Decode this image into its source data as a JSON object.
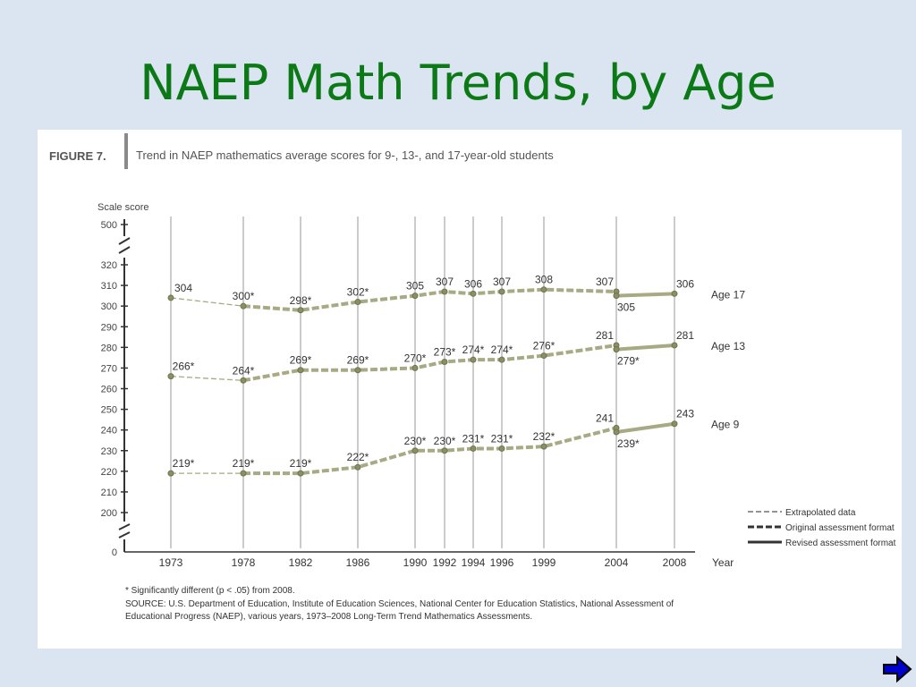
{
  "slide": {
    "title": "NAEP Math Trends, by Age"
  },
  "figure": {
    "label": "FIGURE 7.",
    "caption": "Trend in NAEP mathematics average scores for 9-, 13-, and 17-year-old students",
    "note": "* Significantly different (p < .05) from 2008.",
    "source_line1": "SOURCE: U.S. Department of Education, Institute of Education Sciences, National Center for Education Statistics, National Assessment of",
    "source_line2": "Educational Progress (NAEP), various years, 1973–2008 Long-Term Trend Mathematics Assessments."
  },
  "legend": {
    "items": [
      {
        "label": "Extrapolated data",
        "style": "thin-dashed"
      },
      {
        "label": "Original assessment format",
        "style": "thick-dashed"
      },
      {
        "label": "Revised assessment format",
        "style": "solid"
      }
    ]
  },
  "colors": {
    "title": "#0b7a16",
    "series": "#a7aa82",
    "marker": "#8a9062",
    "background": "#dbe5f1",
    "arrow": "#0000cc"
  },
  "chart_data": {
    "type": "line",
    "ylabel": "Scale score",
    "xlabel": "Year",
    "ylim": [
      200,
      320
    ],
    "yticks": [
      200,
      210,
      220,
      230,
      240,
      250,
      260,
      270,
      280,
      290,
      300,
      310,
      320
    ],
    "ybreak_ticks": [
      "0",
      "500"
    ],
    "xticks": [
      1973,
      1978,
      1982,
      1986,
      1990,
      1992,
      1994,
      1996,
      1999,
      2004,
      2008
    ],
    "grid": "vertical",
    "legend_position": "bottom-right",
    "series": [
      {
        "name": "Age 17",
        "original": [
          [
            1973,
            304
          ],
          [
            1978,
            300
          ],
          [
            1982,
            298
          ],
          [
            1986,
            302
          ],
          [
            1990,
            305
          ],
          [
            1992,
            307
          ],
          [
            1994,
            306
          ],
          [
            1996,
            307
          ],
          [
            1999,
            308
          ],
          [
            2004,
            307
          ]
        ],
        "revised": [
          [
            2004,
            305
          ],
          [
            2008,
            306
          ]
        ],
        "labels": [
          {
            "x": 1973,
            "y": 304,
            "text": "304"
          },
          {
            "x": 1978,
            "y": 300,
            "text": "300*"
          },
          {
            "x": 1982,
            "y": 298,
            "text": "298*"
          },
          {
            "x": 1986,
            "y": 302,
            "text": "302*"
          },
          {
            "x": 1990,
            "y": 305,
            "text": "305"
          },
          {
            "x": 1992,
            "y": 307,
            "text": "307"
          },
          {
            "x": 1994,
            "y": 306,
            "text": "306"
          },
          {
            "x": 1996,
            "y": 307,
            "text": "307"
          },
          {
            "x": 1999,
            "y": 308,
            "text": "308"
          },
          {
            "x": 2004,
            "y": 307,
            "text": "307"
          },
          {
            "x": 2004,
            "y": 305,
            "text": "305",
            "below": true
          },
          {
            "x": 2008,
            "y": 306,
            "text": "306"
          }
        ]
      },
      {
        "name": "Age 13",
        "original": [
          [
            1973,
            266
          ],
          [
            1978,
            264
          ],
          [
            1982,
            269
          ],
          [
            1986,
            269
          ],
          [
            1990,
            270
          ],
          [
            1992,
            273
          ],
          [
            1994,
            274
          ],
          [
            1996,
            274
          ],
          [
            1999,
            276
          ],
          [
            2004,
            281
          ]
        ],
        "revised": [
          [
            2004,
            279
          ],
          [
            2008,
            281
          ]
        ],
        "labels": [
          {
            "x": 1973,
            "y": 266,
            "text": "266*"
          },
          {
            "x": 1978,
            "y": 264,
            "text": "264*"
          },
          {
            "x": 1982,
            "y": 269,
            "text": "269*"
          },
          {
            "x": 1986,
            "y": 269,
            "text": "269*"
          },
          {
            "x": 1990,
            "y": 270,
            "text": "270*"
          },
          {
            "x": 1992,
            "y": 273,
            "text": "273*"
          },
          {
            "x": 1994,
            "y": 274,
            "text": "274*"
          },
          {
            "x": 1996,
            "y": 274,
            "text": "274*"
          },
          {
            "x": 1999,
            "y": 276,
            "text": "276*"
          },
          {
            "x": 2004,
            "y": 281,
            "text": "281"
          },
          {
            "x": 2004,
            "y": 279,
            "text": "279*",
            "below": true
          },
          {
            "x": 2008,
            "y": 281,
            "text": "281"
          }
        ]
      },
      {
        "name": "Age 9",
        "original": [
          [
            1973,
            219
          ],
          [
            1978,
            219
          ],
          [
            1982,
            219
          ],
          [
            1986,
            222
          ],
          [
            1990,
            230
          ],
          [
            1992,
            230
          ],
          [
            1994,
            231
          ],
          [
            1996,
            231
          ],
          [
            1999,
            232
          ],
          [
            2004,
            241
          ]
        ],
        "revised": [
          [
            2004,
            239
          ],
          [
            2008,
            243
          ]
        ],
        "labels": [
          {
            "x": 1973,
            "y": 219,
            "text": "219*"
          },
          {
            "x": 1978,
            "y": 219,
            "text": "219*"
          },
          {
            "x": 1982,
            "y": 219,
            "text": "219*"
          },
          {
            "x": 1986,
            "y": 222,
            "text": "222*"
          },
          {
            "x": 1990,
            "y": 230,
            "text": "230*"
          },
          {
            "x": 1992,
            "y": 230,
            "text": "230*"
          },
          {
            "x": 1994,
            "y": 231,
            "text": "231*"
          },
          {
            "x": 1996,
            "y": 231,
            "text": "231*"
          },
          {
            "x": 1999,
            "y": 232,
            "text": "232*"
          },
          {
            "x": 2004,
            "y": 241,
            "text": "241"
          },
          {
            "x": 2004,
            "y": 239,
            "text": "239*",
            "below": true
          },
          {
            "x": 2008,
            "y": 243,
            "text": "243"
          }
        ]
      }
    ]
  }
}
